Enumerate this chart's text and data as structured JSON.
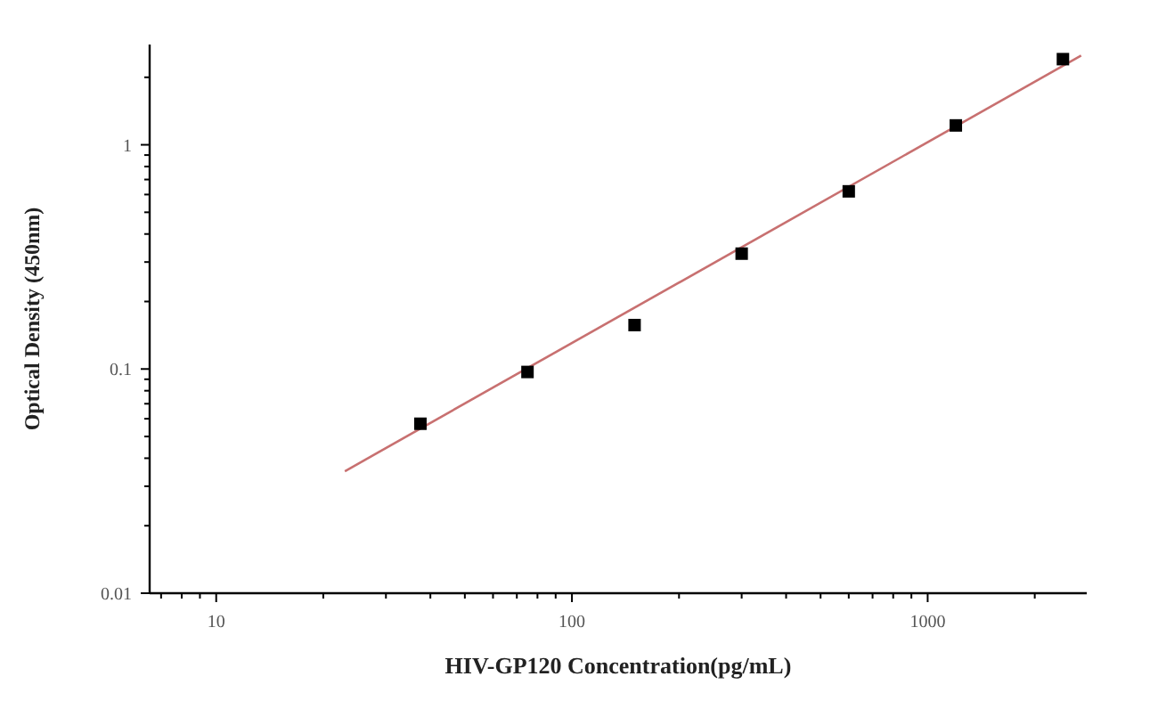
{
  "chart_data": {
    "type": "scatter",
    "xlabel": "HIV-GP120  Concentration(pg/mL)",
    "ylabel": "Optical Density (450nm)",
    "log": "xy",
    "grid": false,
    "marker": "square",
    "xlim": [
      6.5,
      2800
    ],
    "ylim": [
      0.01,
      2.8
    ],
    "xticks": [
      {
        "value": 7,
        "label": null
      },
      {
        "value": 8,
        "label": null
      },
      {
        "value": 9,
        "label": null
      },
      10,
      {
        "value": 20,
        "label": null
      },
      {
        "value": 30,
        "label": null
      },
      {
        "value": 40,
        "label": null
      },
      {
        "value": 50,
        "label": null
      },
      {
        "value": 60,
        "label": null
      },
      {
        "value": 70,
        "label": null
      },
      {
        "value": 80,
        "label": null
      },
      {
        "value": 90,
        "label": null
      },
      100,
      {
        "value": 200,
        "label": null
      },
      {
        "value": 300,
        "label": null
      },
      {
        "value": 400,
        "label": null
      },
      {
        "value": 500,
        "label": null
      },
      {
        "value": 600,
        "label": null
      },
      {
        "value": 700,
        "label": null
      },
      {
        "value": 800,
        "label": null
      },
      {
        "value": 900,
        "label": null
      },
      1000,
      {
        "value": 2000,
        "label": null
      }
    ],
    "yticks": [
      0.01,
      {
        "value": 0.02,
        "label": null
      },
      {
        "value": 0.03,
        "label": null
      },
      {
        "value": 0.04,
        "label": null
      },
      {
        "value": 0.05,
        "label": null
      },
      {
        "value": 0.06,
        "label": null
      },
      {
        "value": 0.07,
        "label": null
      },
      {
        "value": 0.08,
        "label": null
      },
      {
        "value": 0.09,
        "label": null
      },
      0.1,
      {
        "value": 0.2,
        "label": null
      },
      {
        "value": 0.3,
        "label": null
      },
      {
        "value": 0.4,
        "label": null
      },
      {
        "value": 0.5,
        "label": null
      },
      {
        "value": 0.6,
        "label": null
      },
      {
        "value": 0.7,
        "label": null
      },
      {
        "value": 0.8,
        "label": null
      },
      {
        "value": 0.9,
        "label": null
      },
      1,
      {
        "value": 2,
        "label": null
      }
    ],
    "series": [
      {
        "type": "line",
        "color": "#c87070",
        "x": [
          23,
          2700
        ],
        "values": [
          0.035,
          2.5
        ],
        "marker": "none"
      },
      {
        "color": "#000000",
        "x": [
          37.5,
          75,
          150,
          300,
          600,
          1200,
          2400
        ],
        "values": [
          0.057,
          0.097,
          0.157,
          0.327,
          0.62,
          1.22,
          2.41
        ]
      }
    ]
  }
}
